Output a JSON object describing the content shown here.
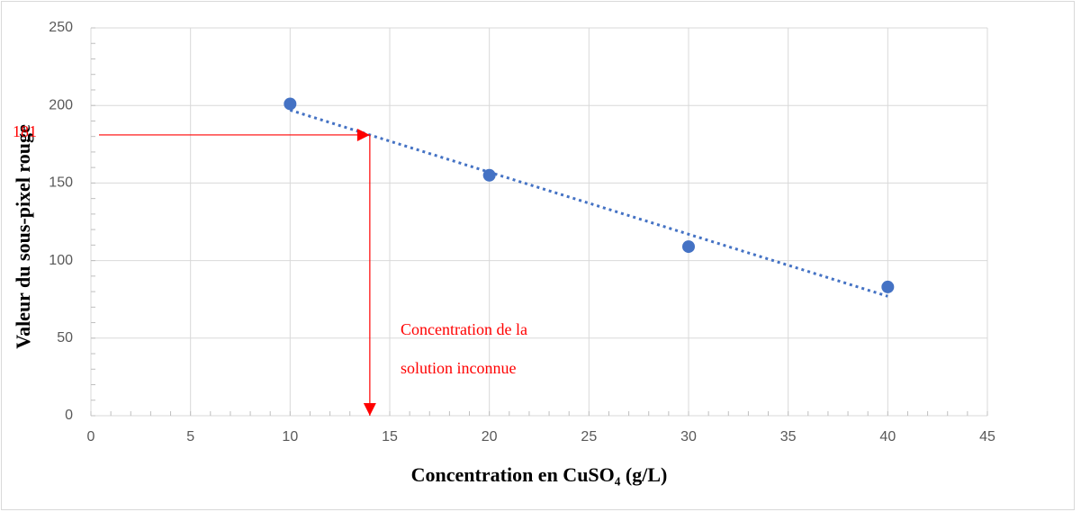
{
  "chart_data": {
    "type": "scatter",
    "x_label": "Concentration en CuSO₄ (g/L)",
    "y_label": "Valeur du sous-pixel rouge",
    "series": [
      {
        "color": "#4472c4",
        "x": [
          10,
          20,
          30,
          40
        ],
        "values": [
          201,
          155,
          109,
          83
        ]
      }
    ],
    "trendline": {
      "style": "dotted",
      "color": "#4472c4",
      "x": [
        10,
        40
      ],
      "y": [
        197,
        77
      ]
    },
    "annotation": {
      "x": 14,
      "y": 181,
      "color": "#ff0000",
      "text": [
        "Concentration de la",
        "solution inconnue"
      ]
    },
    "xlim": [
      0,
      45
    ],
    "xticks": [
      0,
      5,
      10,
      15,
      20,
      25,
      30,
      35,
      40,
      45
    ],
    "ylim": [
      0,
      250
    ],
    "yticks": [
      0,
      50,
      100,
      150,
      200,
      250
    ],
    "minor_xstep": 1,
    "minor_ystep": 10,
    "grid": true
  }
}
